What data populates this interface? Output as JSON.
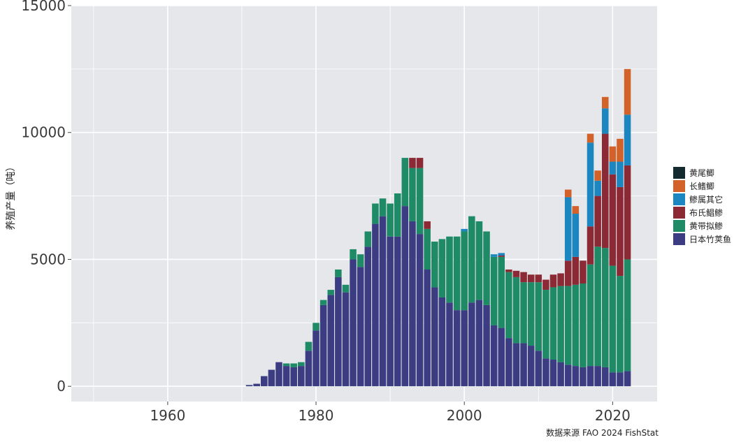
{
  "chart_data": {
    "type": "bar",
    "stacked": true,
    "ylabel": "养殖产量（吨）",
    "source": "数据来源 FAO 2024 FishStat",
    "xlim": [
      1947,
      2026
    ],
    "ylim": [
      -600,
      15000
    ],
    "x_ticks": [
      1960,
      1980,
      2000,
      2020
    ],
    "y_ticks": [
      0,
      5000,
      10000,
      15000
    ],
    "grid": true,
    "legend_position": "right",
    "x": [
      1971,
      1972,
      1973,
      1974,
      1975,
      1976,
      1977,
      1978,
      1979,
      1980,
      1981,
      1982,
      1983,
      1984,
      1985,
      1986,
      1987,
      1988,
      1989,
      1990,
      1991,
      1992,
      1993,
      1994,
      1995,
      1996,
      1997,
      1998,
      1999,
      2000,
      2001,
      2002,
      2003,
      2004,
      2005,
      2006,
      2007,
      2008,
      2009,
      2010,
      2011,
      2012,
      2013,
      2014,
      2015,
      2016,
      2017,
      2018,
      2019,
      2020,
      2021,
      2022
    ],
    "series": [
      {
        "name": "日本竹荚鱼",
        "color": "#3c3c82",
        "values": [
          50,
          100,
          400,
          650,
          950,
          800,
          750,
          800,
          1400,
          2200,
          3200,
          3600,
          4300,
          3700,
          5000,
          4700,
          5500,
          6400,
          6700,
          5900,
          5900,
          7100,
          6500,
          6000,
          4600,
          3900,
          3500,
          3300,
          3000,
          3000,
          3300,
          3400,
          3200,
          2400,
          2300,
          1900,
          1700,
          1700,
          1600,
          1400,
          1100,
          1050,
          950,
          850,
          800,
          750,
          800,
          800,
          750,
          550,
          550,
          600
        ]
      },
      {
        "name": "黄带拟鲹",
        "color": "#1f8b66",
        "values": [
          0,
          0,
          0,
          0,
          0,
          100,
          150,
          150,
          350,
          300,
          200,
          200,
          300,
          300,
          400,
          500,
          600,
          800,
          700,
          1300,
          1700,
          1900,
          2100,
          2600,
          1600,
          1800,
          2300,
          2600,
          2900,
          3100,
          3400,
          3100,
          2900,
          2700,
          2800,
          2600,
          2600,
          2400,
          2500,
          2700,
          2700,
          2850,
          3000,
          3100,
          3200,
          3300,
          4000,
          4700,
          4700,
          4200,
          3800,
          4400
        ]
      },
      {
        "name": "布氏鲳鲹",
        "color": "#8b2a35",
        "values": [
          0,
          0,
          0,
          0,
          0,
          0,
          0,
          0,
          0,
          0,
          0,
          0,
          0,
          0,
          0,
          0,
          0,
          0,
          0,
          0,
          0,
          0,
          400,
          400,
          300,
          0,
          0,
          0,
          0,
          0,
          0,
          0,
          0,
          0,
          50,
          100,
          250,
          400,
          300,
          300,
          400,
          500,
          500,
          1000,
          1100,
          900,
          1500,
          2000,
          4500,
          3600,
          3500,
          3700
        ]
      },
      {
        "name": "鲹属其它",
        "color": "#1b86bf",
        "values": [
          0,
          0,
          0,
          0,
          0,
          0,
          0,
          0,
          0,
          0,
          0,
          0,
          0,
          0,
          0,
          0,
          0,
          0,
          0,
          0,
          0,
          0,
          0,
          0,
          0,
          0,
          0,
          0,
          0,
          100,
          0,
          0,
          0,
          100,
          100,
          0,
          0,
          0,
          0,
          0,
          0,
          0,
          0,
          2500,
          1700,
          0,
          3300,
          600,
          1000,
          500,
          1000,
          2000
        ]
      },
      {
        "name": "长鳍鲫",
        "color": "#d2622a",
        "values": [
          0,
          0,
          0,
          0,
          0,
          0,
          0,
          0,
          0,
          0,
          0,
          0,
          0,
          0,
          0,
          0,
          0,
          0,
          0,
          0,
          0,
          0,
          0,
          0,
          0,
          0,
          0,
          0,
          0,
          0,
          0,
          0,
          0,
          0,
          0,
          0,
          0,
          0,
          0,
          0,
          0,
          0,
          0,
          300,
          300,
          0,
          350,
          400,
          450,
          600,
          900,
          1800
        ]
      },
      {
        "name": "黄尾鲫",
        "color": "#132a2e",
        "values": [
          0,
          0,
          0,
          0,
          0,
          0,
          0,
          0,
          0,
          0,
          0,
          0,
          0,
          0,
          0,
          0,
          0,
          0,
          0,
          0,
          0,
          0,
          0,
          0,
          0,
          0,
          0,
          0,
          0,
          0,
          0,
          0,
          0,
          0,
          0,
          0,
          0,
          0,
          0,
          0,
          0,
          0,
          0,
          0,
          0,
          0,
          0,
          0,
          0,
          0,
          0,
          0
        ]
      }
    ]
  }
}
